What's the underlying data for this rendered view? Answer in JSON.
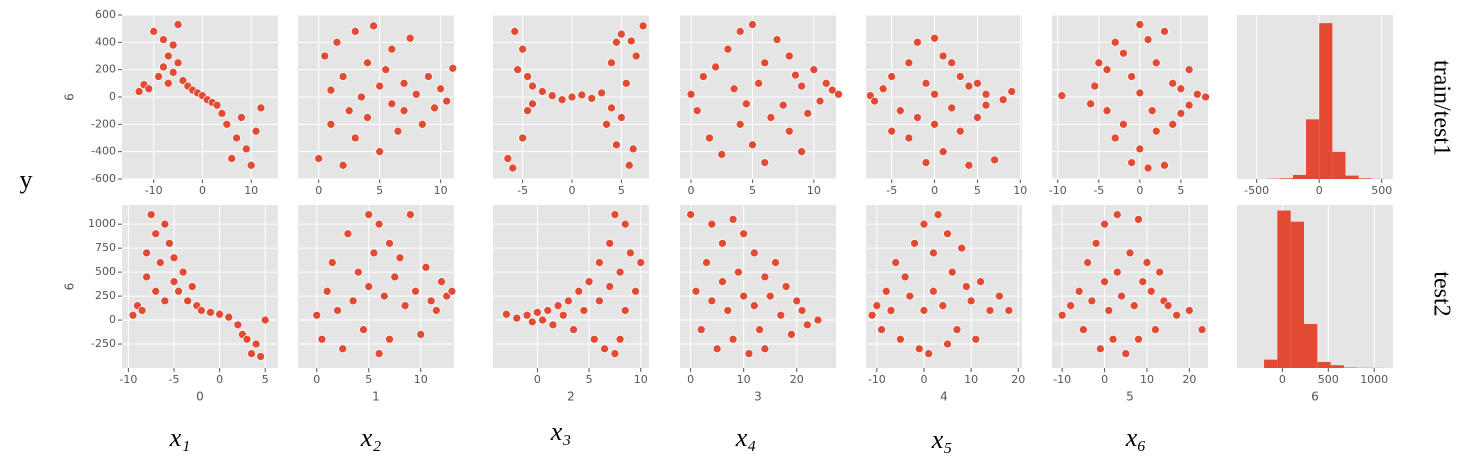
{
  "labels": {
    "y_label": "y",
    "row_labels": [
      "train/test1",
      "test2"
    ],
    "column_labels": [
      "x₁",
      "x₂",
      "x₃",
      "x₄",
      "x₅",
      "x₆"
    ]
  },
  "chart_data": [
    {
      "type": "scatter",
      "color": "#e24a33",
      "grid": true,
      "show_yticklabels": true,
      "ylabel": "6",
      "xlim": [
        -16.5,
        15.5
      ],
      "xticks": [
        -10,
        0,
        10
      ],
      "ylim": [
        -600,
        600
      ],
      "yticks": [
        -600,
        -400,
        -200,
        0,
        200,
        400,
        600
      ],
      "x": [
        -13,
        -12,
        -11,
        -10,
        -9,
        -8,
        -8,
        -7,
        -7,
        -6,
        -6,
        -5,
        -5,
        -4,
        -3,
        -2,
        -1,
        0,
        1,
        2,
        3,
        4,
        5,
        6,
        7,
        8,
        9,
        10,
        11,
        12
      ],
      "values": [
        40,
        90,
        60,
        480,
        150,
        220,
        420,
        100,
        300,
        380,
        180,
        530,
        250,
        120,
        80,
        50,
        30,
        10,
        -20,
        -40,
        -60,
        -120,
        -200,
        -450,
        -300,
        -150,
        -380,
        -500,
        -250,
        -80
      ]
    },
    {
      "type": "scatter",
      "color": "#e24a33",
      "grid": true,
      "show_yticklabels": false,
      "xlim": [
        -1.7,
        11.1
      ],
      "xticks": [
        0,
        5,
        10
      ],
      "ylim": [
        -600,
        600
      ],
      "yticks": [
        -600,
        -400,
        -200,
        0,
        200,
        400,
        600
      ],
      "x": [
        0,
        0.5,
        1,
        1,
        1.5,
        2,
        2,
        2.5,
        3,
        3,
        3.5,
        4,
        4,
        4.5,
        5,
        5,
        5.5,
        6,
        6,
        6.5,
        7,
        7,
        7.5,
        8,
        8.5,
        9,
        9.5,
        10,
        10.5,
        11
      ],
      "values": [
        -450,
        300,
        -200,
        50,
        400,
        -500,
        150,
        -100,
        480,
        -300,
        0,
        250,
        -150,
        520,
        80,
        -400,
        200,
        -50,
        350,
        -250,
        100,
        -100,
        430,
        20,
        -200,
        150,
        -80,
        60,
        -30,
        210
      ]
    },
    {
      "type": "scatter",
      "color": "#e24a33",
      "grid": true,
      "show_yticklabels": false,
      "xlim": [
        -8,
        7.8
      ],
      "xticks": [
        -5,
        0,
        5
      ],
      "ylim": [
        -600,
        600
      ],
      "yticks": [
        -600,
        -400,
        -200,
        0,
        200,
        400,
        600
      ],
      "x": [
        -6.5,
        -6,
        -5.8,
        -5.5,
        -5,
        -5,
        -4.5,
        -4.5,
        -4,
        -4,
        -3,
        -2,
        -1,
        0,
        1,
        2,
        3,
        3.5,
        4,
        4,
        4.5,
        4.5,
        5,
        5,
        5.5,
        5.8,
        6,
        6.2,
        6.5,
        7.2
      ],
      "values": [
        -450,
        -520,
        480,
        200,
        -300,
        350,
        -100,
        150,
        -50,
        80,
        40,
        10,
        -20,
        0,
        15,
        -10,
        30,
        -200,
        250,
        -80,
        400,
        -350,
        460,
        -150,
        100,
        -500,
        410,
        -380,
        300,
        520
      ]
    },
    {
      "type": "scatter",
      "color": "#e24a33",
      "grid": true,
      "show_yticklabels": false,
      "xlim": [
        -0.9,
        11.8
      ],
      "xticks": [
        0,
        5,
        10
      ],
      "ylim": [
        -600,
        600
      ],
      "yticks": [
        -600,
        -400,
        -200,
        0,
        200,
        400,
        600
      ],
      "x": [
        0,
        0.5,
        1,
        1.5,
        2,
        2.5,
        3,
        3.5,
        4,
        4,
        4.5,
        5,
        5,
        5.5,
        6,
        6,
        6.5,
        7,
        7.5,
        8,
        8,
        8.5,
        9,
        9,
        9.5,
        10,
        10.5,
        11,
        11.5,
        12
      ],
      "values": [
        20,
        -100,
        150,
        -300,
        220,
        -420,
        350,
        60,
        -200,
        480,
        -50,
        530,
        -350,
        100,
        -480,
        250,
        -150,
        420,
        -60,
        300,
        -250,
        160,
        -400,
        80,
        -120,
        200,
        -30,
        100,
        50,
        20
      ]
    },
    {
      "type": "scatter",
      "color": "#e24a33",
      "grid": true,
      "show_yticklabels": false,
      "xlim": [
        -8,
        10.2
      ],
      "xticks": [
        -5,
        0,
        5,
        10
      ],
      "ylim": [
        -600,
        600
      ],
      "yticks": [
        -600,
        -400,
        -200,
        0,
        200,
        400,
        600
      ],
      "x": [
        -7.5,
        -7,
        -6,
        -5,
        -5,
        -4,
        -3,
        -3,
        -2,
        -2,
        -1,
        -1,
        0,
        0,
        0,
        1,
        1,
        2,
        2,
        3,
        3,
        4,
        4,
        5,
        5,
        6,
        6,
        7,
        8,
        9
      ],
      "values": [
        10,
        -30,
        60,
        -250,
        150,
        -100,
        250,
        -300,
        400,
        -150,
        -480,
        100,
        430,
        -200,
        20,
        -400,
        300,
        -80,
        250,
        -250,
        150,
        -500,
        80,
        -150,
        100,
        20,
        -60,
        -460,
        -20,
        40
      ]
    },
    {
      "type": "scatter",
      "color": "#e24a33",
      "grid": true,
      "show_yticklabels": false,
      "xlim": [
        -10.7,
        8.3
      ],
      "xticks": [
        -10,
        -5,
        0,
        5
      ],
      "ylim": [
        -600,
        600
      ],
      "yticks": [
        -600,
        -400,
        -200,
        0,
        200,
        400,
        600
      ],
      "x": [
        -9.5,
        -6,
        -5.5,
        -5,
        -4,
        -4,
        -3,
        -3,
        -2,
        -2,
        -1,
        -1,
        0,
        0,
        0,
        1,
        1,
        1.5,
        2,
        2,
        3,
        3,
        4,
        4,
        5,
        5,
        6,
        6,
        7,
        8
      ],
      "values": [
        10,
        -50,
        80,
        250,
        -100,
        200,
        -300,
        400,
        -200,
        320,
        -480,
        150,
        530,
        -380,
        30,
        -520,
        420,
        -100,
        250,
        -250,
        480,
        -500,
        100,
        -200,
        60,
        -120,
        200,
        -60,
        20,
        0
      ]
    },
    {
      "type": "histogram",
      "color": "#e24a33",
      "grid": true,
      "xlim": [
        -657,
        590
      ],
      "xticks": [
        -500,
        0,
        500
      ],
      "ylim": [
        0,
        1210
      ],
      "bins": [
        -420,
        -315,
        -210,
        -105,
        0,
        105,
        210,
        315,
        420,
        525
      ],
      "values": [
        2,
        5,
        30,
        440,
        1150,
        200,
        25,
        5,
        1
      ]
    },
    {
      "type": "scatter",
      "color": "#e24a33",
      "grid": true,
      "show_yticklabels": true,
      "ylabel": "6",
      "xlabel": "0",
      "xlim": [
        -10.7,
        6.4
      ],
      "xticks": [
        -10,
        -5,
        0,
        5
      ],
      "ylim": [
        -500,
        1200
      ],
      "yticks": [
        -250,
        0,
        250,
        500,
        750,
        1000
      ],
      "x": [
        -9.5,
        -9,
        -8.5,
        -8,
        -8,
        -7.5,
        -7,
        -7,
        -6.5,
        -6,
        -6,
        -5.5,
        -5,
        -5,
        -4.5,
        -4,
        -3.5,
        -3,
        -2.5,
        -2,
        -1,
        0,
        1,
        2,
        2.5,
        3,
        3.5,
        4,
        4.5,
        5
      ],
      "values": [
        50,
        150,
        100,
        450,
        700,
        1100,
        300,
        900,
        600,
        200,
        1000,
        800,
        400,
        650,
        300,
        500,
        200,
        350,
        150,
        100,
        80,
        60,
        30,
        -50,
        -150,
        -200,
        -350,
        -250,
        -380,
        0
      ]
    },
    {
      "type": "scatter",
      "color": "#e24a33",
      "grid": true,
      "show_yticklabels": false,
      "xlabel": "1",
      "xlim": [
        -1.8,
        13.2
      ],
      "xticks": [
        0,
        5,
        10
      ],
      "ylim": [
        -500,
        1200
      ],
      "yticks": [
        -250,
        0,
        250,
        500,
        750,
        1000
      ],
      "x": [
        0,
        0.5,
        1,
        1.5,
        2,
        2.5,
        3,
        3.5,
        4,
        4.5,
        5,
        5,
        5.5,
        6,
        6,
        6.5,
        7,
        7,
        7.5,
        8,
        8.5,
        9,
        9.5,
        10,
        10.5,
        11,
        11.5,
        12,
        12.5,
        13
      ],
      "values": [
        50,
        -200,
        300,
        600,
        100,
        -300,
        900,
        200,
        500,
        -100,
        1100,
        350,
        700,
        -350,
        1000,
        250,
        800,
        -200,
        450,
        650,
        150,
        1100,
        300,
        -150,
        550,
        200,
        100,
        400,
        250,
        300
      ]
    },
    {
      "type": "scatter",
      "color": "#e24a33",
      "grid": true,
      "show_yticklabels": false,
      "xlabel": "2",
      "xlim": [
        -4.3,
        10.8
      ],
      "xticks": [
        0,
        5,
        10
      ],
      "ylim": [
        -500,
        1200
      ],
      "yticks": [
        -250,
        0,
        250,
        500,
        750,
        1000
      ],
      "x": [
        -3,
        -2,
        -1,
        -0.5,
        0,
        0.5,
        1,
        1.5,
        2,
        2.5,
        3,
        3.5,
        4,
        4.5,
        5,
        5.5,
        6,
        6,
        6.5,
        7,
        7,
        7.5,
        7.5,
        8,
        8,
        8.5,
        8.5,
        9,
        9.5,
        10
      ],
      "values": [
        60,
        20,
        50,
        -20,
        80,
        0,
        100,
        -50,
        150,
        50,
        200,
        -100,
        300,
        100,
        400,
        -200,
        600,
        200,
        -300,
        800,
        350,
        -350,
        1100,
        500,
        -200,
        1000,
        100,
        700,
        300,
        600
      ]
    },
    {
      "type": "scatter",
      "color": "#e24a33",
      "grid": true,
      "show_yticklabels": false,
      "xlabel": "3",
      "xlim": [
        -2,
        27.4
      ],
      "xticks": [
        0,
        10,
        20
      ],
      "ylim": [
        -500,
        1200
      ],
      "yticks": [
        -250,
        0,
        250,
        500,
        750,
        1000
      ],
      "x": [
        0,
        1,
        2,
        3,
        4,
        4,
        5,
        6,
        6,
        7,
        8,
        8,
        9,
        10,
        10,
        11,
        12,
        12,
        13,
        14,
        14,
        15,
        16,
        17,
        18,
        19,
        20,
        21,
        22,
        24
      ],
      "values": [
        1100,
        300,
        -100,
        600,
        1000,
        200,
        -300,
        800,
        400,
        100,
        1050,
        -200,
        500,
        900,
        250,
        -350,
        700,
        150,
        -100,
        450,
        -300,
        250,
        600,
        50,
        350,
        -150,
        200,
        100,
        -50,
        0
      ]
    },
    {
      "type": "scatter",
      "color": "#e24a33",
      "grid": true,
      "show_yticklabels": false,
      "xlabel": "4",
      "xlim": [
        -12.3,
        20.8
      ],
      "xticks": [
        -10,
        0,
        10,
        20
      ],
      "ylim": [
        -500,
        1200
      ],
      "yticks": [
        -250,
        0,
        250,
        500,
        750,
        1000
      ],
      "x": [
        -11,
        -10,
        -9,
        -8,
        -7,
        -6,
        -5,
        -4,
        -3,
        -2,
        -1,
        0,
        0,
        1,
        2,
        2,
        3,
        4,
        5,
        5,
        6,
        7,
        8,
        9,
        10,
        11,
        12,
        14,
        16,
        18
      ],
      "values": [
        50,
        150,
        -100,
        300,
        100,
        600,
        -200,
        450,
        250,
        800,
        -300,
        1000,
        100,
        -350,
        700,
        300,
        1100,
        150,
        -250,
        900,
        500,
        -100,
        750,
        350,
        200,
        -200,
        400,
        100,
        250,
        100
      ]
    },
    {
      "type": "scatter",
      "color": "#e24a33",
      "grid": true,
      "show_yticklabels": false,
      "xlabel": "5",
      "xlim": [
        -12.4,
        24.4
      ],
      "xticks": [
        -10,
        0,
        10,
        20
      ],
      "ylim": [
        -500,
        1200
      ],
      "yticks": [
        -250,
        0,
        250,
        500,
        750,
        1000
      ],
      "x": [
        -10,
        -8,
        -6,
        -5,
        -4,
        -3,
        -2,
        -1,
        0,
        0,
        1,
        2,
        3,
        3,
        4,
        5,
        6,
        7,
        8,
        8,
        9,
        10,
        11,
        12,
        13,
        14,
        15,
        17,
        20,
        23
      ],
      "values": [
        50,
        150,
        300,
        -100,
        600,
        200,
        800,
        -300,
        1000,
        400,
        100,
        -200,
        1100,
        500,
        250,
        -350,
        700,
        150,
        1050,
        -200,
        400,
        600,
        300,
        -100,
        500,
        200,
        150,
        50,
        100,
        -100
      ]
    },
    {
      "type": "histogram",
      "color": "#e24a33",
      "grid": true,
      "xlabel": "6",
      "xlim": [
        -495,
        1205
      ],
      "xticks": [
        0,
        500,
        1000
      ],
      "ylim": [
        0,
        1760
      ],
      "bins": [
        -200,
        -55,
        90,
        235,
        380,
        525,
        670,
        815,
        960,
        1105
      ],
      "values": [
        90,
        1700,
        1580,
        475,
        65,
        30,
        5,
        2,
        1
      ]
    }
  ]
}
